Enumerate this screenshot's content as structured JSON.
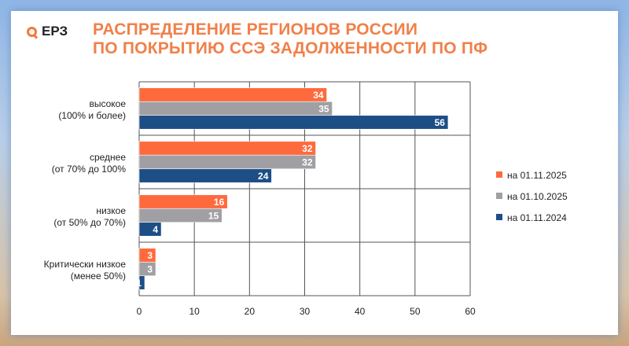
{
  "logo": {
    "text": "ЕРЗ"
  },
  "header": {
    "title_line1": "РАСПРЕДЕЛЕНИЕ РЕГИОНОВ РОССИИ",
    "title_line2": "ПО ПОКРЫТИЮ ССЭ ЗАДОЛЖЕННОСТИ ПО ПФ"
  },
  "chart_data": {
    "type": "bar",
    "orientation": "horizontal",
    "title": "РАСПРЕДЕЛЕНИЕ РЕГИОНОВ РОССИИ ПО ПОКРЫТИЮ ССЭ ЗАДОЛЖЕННОСТИ ПО ПФ",
    "categories": [
      [
        "высокое",
        "(100% и более)"
      ],
      [
        "среднее",
        "(от 70% до 100%"
      ],
      [
        "низкое",
        "(от 50% до  70%)"
      ],
      [
        "Критически низкое",
        "(менее 50%)"
      ]
    ],
    "series": [
      {
        "name": "на 01.11.2025",
        "color": "#ff6a3d",
        "values": [
          34,
          32,
          16,
          3
        ]
      },
      {
        "name": "на 01.10.2025",
        "color": "#a0a0a4",
        "values": [
          35,
          32,
          15,
          3
        ]
      },
      {
        "name": "на 01.11.2024",
        "color": "#1d4e86",
        "values": [
          56,
          24,
          4,
          1
        ]
      }
    ],
    "xlim": [
      0,
      60
    ],
    "xticks": [
      "0",
      "10",
      "20",
      "30",
      "40",
      "50",
      "60"
    ],
    "grid": true,
    "legend": "right"
  }
}
